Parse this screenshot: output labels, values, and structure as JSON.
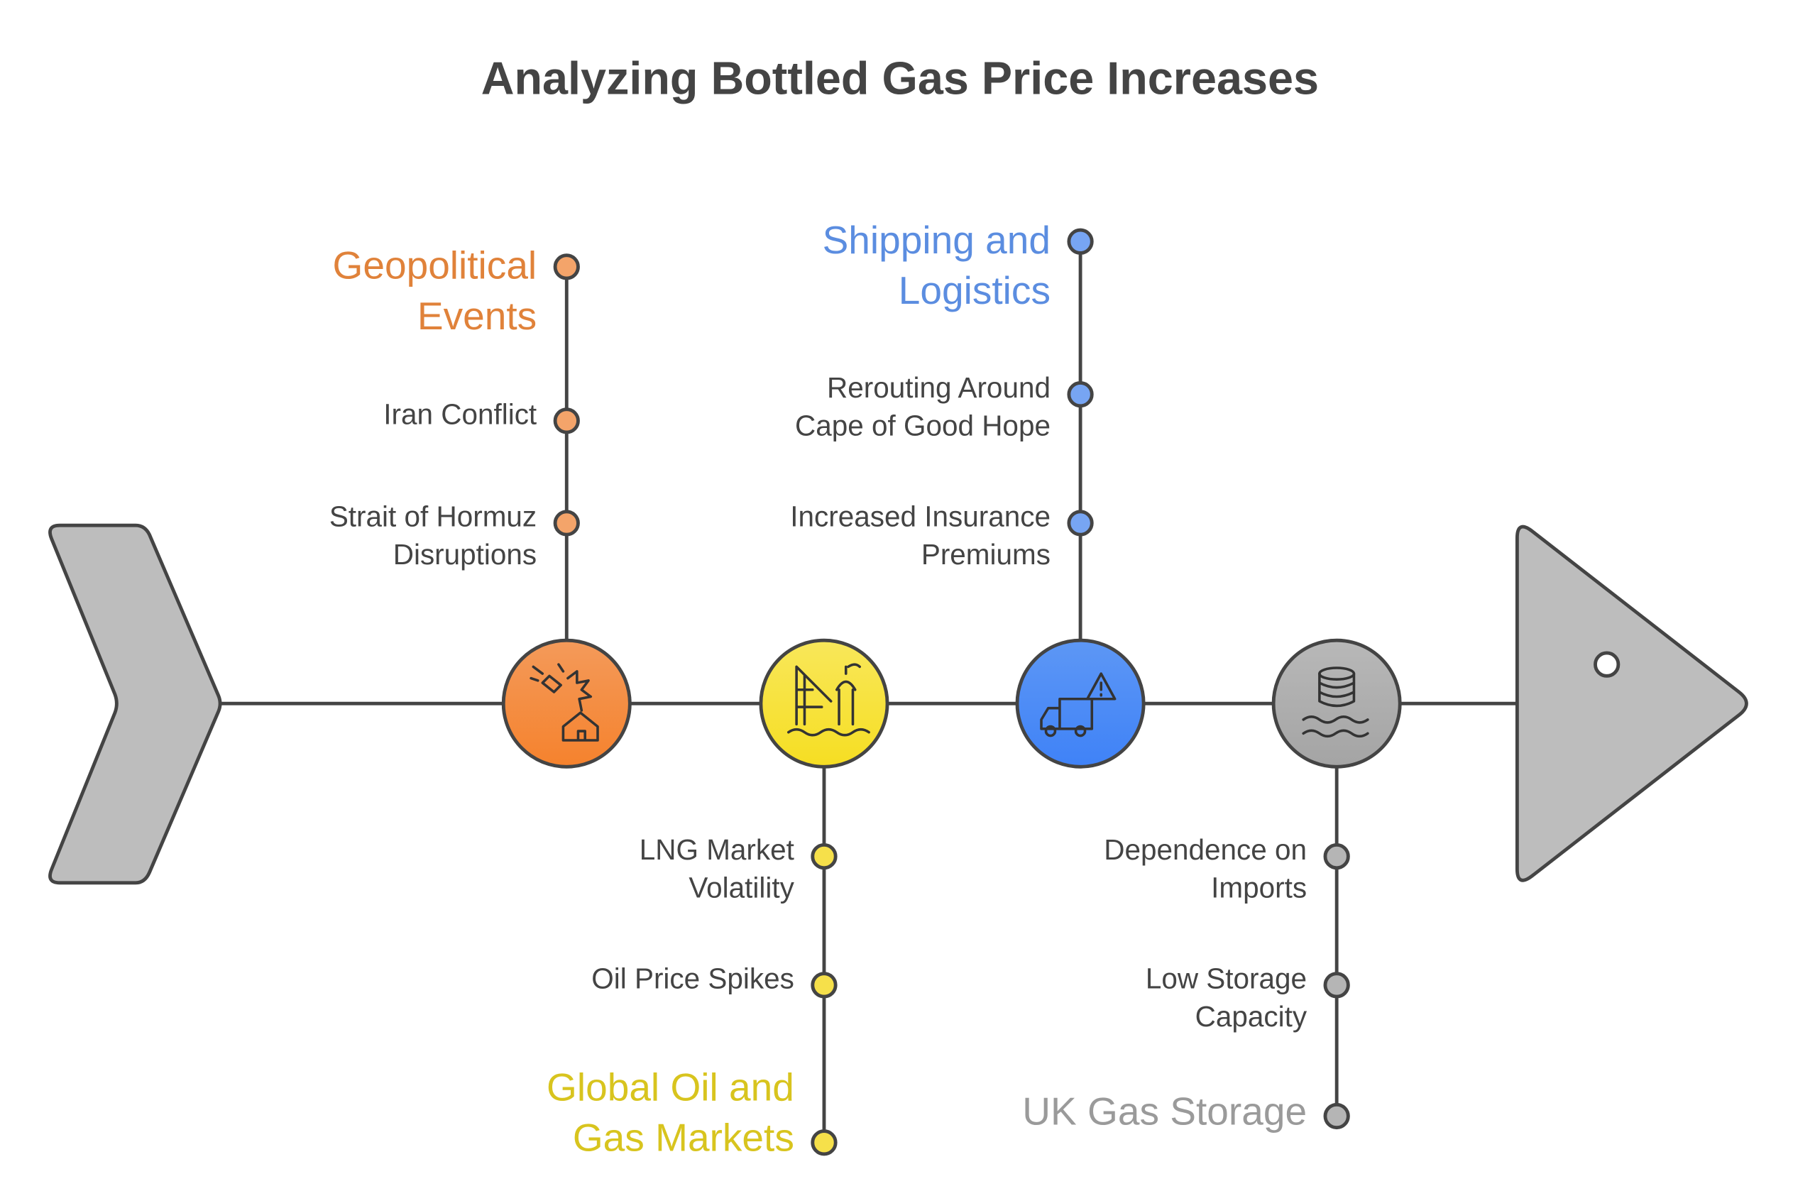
{
  "title": "Analyzing Bottled Gas Price Increases",
  "branches": [
    {
      "label": [
        "Geopolitical",
        "Events"
      ],
      "items": [
        [
          "Iran Conflict"
        ],
        [
          "Strait of Hormuz",
          "Disruptions"
        ]
      ]
    },
    {
      "label": [
        "Global Oil and",
        "Gas Markets"
      ],
      "items": [
        [
          "LNG Market",
          "Volatility"
        ],
        [
          "Oil Price Spikes"
        ]
      ]
    },
    {
      "label": [
        "Shipping and",
        "Logistics"
      ],
      "items": [
        [
          "Rerouting Around",
          "Cape of Good Hope"
        ],
        [
          "Increased Insurance",
          "Premiums"
        ]
      ]
    },
    {
      "label": [
        "UK Gas Storage"
      ],
      "items": [
        [
          "Dependence on",
          "Imports"
        ],
        [
          "Low Storage",
          "Capacity"
        ]
      ]
    }
  ]
}
